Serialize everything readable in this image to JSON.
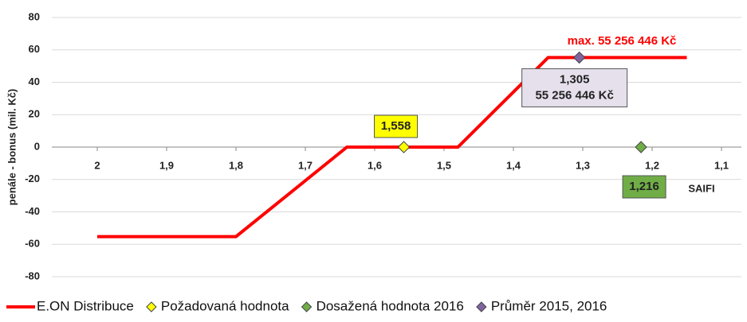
{
  "chart_data": {
    "type": "line",
    "ylabel": "penále  - bonus  (mil. Kč)",
    "xlabel": "SAIFI",
    "annotation": "max. 55 256 446 Kč",
    "xlim": [
      2,
      1.1
    ],
    "xticks": [
      2,
      {
        "value": 1.9,
        "label": "1,9"
      },
      {
        "value": 1.8,
        "label": "1,8"
      },
      {
        "value": 1.7,
        "label": "1,7"
      },
      {
        "value": 1.6,
        "label": "1,6"
      },
      {
        "value": 1.5,
        "label": "1,5"
      },
      {
        "value": 1.4,
        "label": "1,4"
      },
      {
        "value": 1.3,
        "label": "1,3"
      },
      {
        "value": 1.2,
        "label": "1,2"
      },
      {
        "value": 1.1,
        "label": "1,1"
      }
    ],
    "ylim": [
      -80,
      80
    ],
    "yticks": [
      80,
      60,
      40,
      20,
      0,
      -20,
      -40,
      -60,
      -80
    ],
    "grid": true,
    "series": [
      {
        "name": "E.ON Distribuce",
        "type": "line",
        "color": "#ff0000",
        "x": [
          2,
          1.8,
          1.64,
          1.48,
          1.35,
          1.15
        ],
        "values": [
          -55.256446,
          -55.256446,
          0,
          0,
          55.256446,
          55.256446
        ]
      },
      {
        "name": "Požadovaná hodnota",
        "type": "scatter",
        "color": "#ffff00",
        "box_color": "#ffff00",
        "x": [
          1.558
        ],
        "values": [
          0
        ],
        "x_labels": [
          "1,558"
        ]
      },
      {
        "name": "Dosažená hodnota 2016",
        "type": "scatter",
        "color": "#70ad47",
        "box_color": "#70ad47",
        "x": [
          1.216
        ],
        "values": [
          0
        ],
        "x_labels": [
          "1,216"
        ]
      },
      {
        "name": "Průměr 2015, 2016",
        "type": "scatter",
        "color": "#8064a2",
        "box_color": "#e6e0ec",
        "x": [
          1.305
        ],
        "values": [
          55.256446
        ],
        "x_labels": [
          "1,305"
        ],
        "value_labels": [
          "55 256 446 Kč"
        ]
      }
    ]
  }
}
